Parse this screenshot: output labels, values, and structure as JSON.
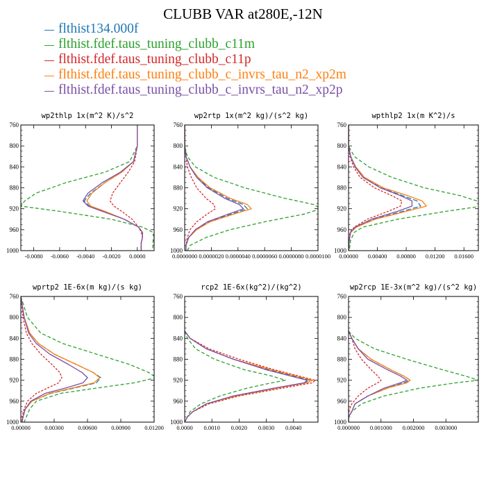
{
  "title": "CLUBB VAR at280E,-12N",
  "legend": [
    {
      "label": "flthist134.000f",
      "color": "#1f77b4"
    },
    {
      "label": "flthist.fdef.taus_tuning_clubb_c11m",
      "color": "#2ca02c"
    },
    {
      "label": "flthist.fdef.taus_tuning_clubb_c11p",
      "color": "#d62728"
    },
    {
      "label": "flthist.fdef.taus_tuning_clubb_c_invrs_tau_n2_xp2m",
      "color": "#ff7f0e"
    },
    {
      "label": "flthist.fdef.taus_tuning_clubb_c_invrs_tau_n2_xp2p",
      "color": "#7b4fa6"
    }
  ],
  "chart_data": [
    {
      "type": "line",
      "title": "wp2thlp  1x(m^2 K)/s^2",
      "xlim": [
        -0.009,
        0.0013
      ],
      "ylim": [
        760,
        1000
      ],
      "y_inverted": true,
      "xticks": [
        -0.008,
        -0.006,
        -0.004,
        -0.002,
        0.0
      ],
      "xtick_labels": [
        "-0.0080",
        "-0.0060",
        "-0.0040",
        "-0.0020",
        "0.0000"
      ],
      "yticks": [
        760,
        800,
        840,
        880,
        920,
        960,
        1000
      ],
      "ytick_labels": [
        "760",
        "800",
        "840",
        "880",
        "920",
        "960",
        "1000"
      ],
      "y": [
        760,
        800,
        830,
        850,
        870,
        890,
        905,
        915,
        925,
        940,
        955,
        965,
        975,
        985,
        1000
      ],
      "series": [
        {
          "name": "flthist134.000f",
          "color": "#1f77b4",
          "dash": "7 3",
          "values": [
            0.0,
            0.0,
            -0.0003,
            -0.0012,
            -0.0025,
            -0.0036,
            -0.0041,
            -0.0037,
            -0.0026,
            -0.001,
            0.0001,
            0.0004,
            0.0004,
            0.0003,
            0.0003
          ]
        },
        {
          "name": "flthist.fdef.taus_tuning_clubb_c11m",
          "color": "#2ca02c",
          "dash": "5 3",
          "values": [
            0.0,
            0.0,
            -0.0006,
            -0.0025,
            -0.0055,
            -0.0078,
            -0.0087,
            -0.009,
            -0.006,
            -0.002,
            0.0004,
            0.0012,
            0.0013,
            0.0012,
            0.0012
          ]
        },
        {
          "name": "flthist.fdef.taus_tuning_clubb_c11p",
          "color": "#d62728",
          "dash": "3 2",
          "values": [
            0.0,
            0.0,
            -0.0002,
            -0.0007,
            -0.0013,
            -0.0019,
            -0.0021,
            -0.0018,
            -0.0012,
            -0.0004,
            0.0001,
            0.0003,
            0.0004,
            0.0003,
            0.0003
          ]
        },
        {
          "name": "flthist.fdef.taus_tuning_clubb_c_invrs_tau_n2_xp2m",
          "color": "#ff7f0e",
          "dash": "",
          "values": [
            0.0,
            0.0,
            -0.0003,
            -0.0012,
            -0.0025,
            -0.0035,
            -0.0039,
            -0.0036,
            -0.0025,
            -0.001,
            0.0001,
            0.0004,
            0.0004,
            0.0003,
            0.0003
          ]
        },
        {
          "name": "flthist.fdef.taus_tuning_clubb_c_invrs_tau_n2_xp2p",
          "color": "#7b4fa6",
          "dash": "",
          "values": [
            0.0,
            0.0,
            -0.0003,
            -0.0013,
            -0.0027,
            -0.0038,
            -0.0042,
            -0.0038,
            -0.0027,
            -0.001,
            0.0001,
            0.0004,
            0.0004,
            0.0003,
            0.0003
          ]
        }
      ]
    },
    {
      "type": "line",
      "title": "wp2rtp  1x(m^2 kg)/(s^2 kg)",
      "xlim": [
        0,
        1e-05
      ],
      "ylim": [
        760,
        1000
      ],
      "y_inverted": true,
      "xticks": [
        0,
        2e-06,
        4e-06,
        6e-06,
        8e-06,
        1e-05
      ],
      "xtick_labels": [
        "0.0000000",
        "0.0000020",
        "0.0000040",
        "0.0000060",
        "0.0000080",
        "0.0000100"
      ],
      "yticks": [
        760,
        800,
        840,
        880,
        920,
        960,
        1000
      ],
      "ytick_labels": [
        "760",
        "800",
        "840",
        "880",
        "920",
        "960",
        "1000"
      ],
      "y": [
        760,
        800,
        820,
        840,
        860,
        880,
        900,
        912,
        920,
        930,
        945,
        960,
        975,
        990,
        1000
      ],
      "series": [
        {
          "name": "flthist134.000f",
          "color": "#1f77b4",
          "dash": "7 3",
          "values": [
            0.0,
            0.0,
            1e-07,
            4e-07,
            9e-07,
            1.8e-06,
            3.2e-06,
            4.4e-06,
            4.7e-06,
            3.5e-06,
            1.8e-06,
            8e-07,
            3e-07,
            1e-07,
            1e-07
          ]
        },
        {
          "name": "flthist.fdef.taus_tuning_clubb_c11m",
          "color": "#2ca02c",
          "dash": "5 3",
          "values": [
            0.0,
            0.0,
            2e-07,
            8e-07,
            2.2e-06,
            4.5e-06,
            7.5e-06,
            9.7e-06,
            1.02e-05,
            9e-06,
            6e-06,
            3.4e-06,
            1.6e-06,
            4e-07,
            2e-07
          ]
        },
        {
          "name": "flthist.fdef.taus_tuning_clubb_c11p",
          "color": "#d62728",
          "dash": "3 2",
          "values": [
            0.0,
            0.0,
            1e-07,
            2e-07,
            5e-07,
            9e-07,
            1.6e-06,
            2.2e-06,
            2.3e-06,
            1.7e-06,
            9e-07,
            4e-07,
            2e-07,
            1e-07,
            1e-07
          ]
        },
        {
          "name": "flthist.fdef.taus_tuning_clubb_c_invrs_tau_n2_xp2m",
          "color": "#ff7f0e",
          "dash": "",
          "values": [
            0.0,
            0.0,
            1e-07,
            4e-07,
            1e-06,
            1.9e-06,
            3.4e-06,
            4.7e-06,
            5e-06,
            3.7e-06,
            1.9e-06,
            9e-07,
            3e-07,
            1e-07,
            1e-07
          ]
        },
        {
          "name": "flthist.fdef.taus_tuning_clubb_c_invrs_tau_n2_xp2p",
          "color": "#7b4fa6",
          "dash": "",
          "values": [
            0.0,
            0.0,
            1e-07,
            4e-07,
            9e-07,
            1.7e-06,
            3e-06,
            4.1e-06,
            4.4e-06,
            3.3e-06,
            1.7e-06,
            8e-07,
            3e-07,
            1e-07,
            1e-07
          ]
        }
      ]
    },
    {
      "type": "line",
      "title": "wpthlp2  1x(m K^2)/s",
      "xlim": [
        0,
        0.018
      ],
      "ylim": [
        760,
        1000
      ],
      "y_inverted": true,
      "xticks": [
        0,
        0.004,
        0.008,
        0.012,
        0.016
      ],
      "xtick_labels": [
        "0.00000",
        "0.00400",
        "0.00800",
        "0.01200",
        "0.01600"
      ],
      "yticks": [
        760,
        800,
        840,
        880,
        920,
        960,
        1000
      ],
      "ytick_labels": [
        "760",
        "800",
        "840",
        "880",
        "920",
        "960",
        "1000"
      ],
      "y": [
        760,
        800,
        820,
        840,
        860,
        880,
        895,
        905,
        915,
        925,
        940,
        955,
        965,
        980,
        1000
      ],
      "series": [
        {
          "name": "flthist134.000f",
          "color": "#1f77b4",
          "dash": "7 3",
          "values": [
            0.0,
            0.0,
            0.0003,
            0.0009,
            0.002,
            0.0045,
            0.0075,
            0.0095,
            0.01,
            0.0075,
            0.0035,
            0.001,
            0.0003,
            0.0001,
            0.0
          ]
        },
        {
          "name": "flthist.fdef.taus_tuning_clubb_c11m",
          "color": "#2ca02c",
          "dash": "5 3",
          "values": [
            0.0,
            0.0,
            0.0008,
            0.0028,
            0.006,
            0.0105,
            0.0155,
            0.0178,
            0.0185,
            0.0135,
            0.0068,
            0.002,
            0.0008,
            0.0003,
            0.0001
          ]
        },
        {
          "name": "flthist.fdef.taus_tuning_clubb_c11p",
          "color": "#d62728",
          "dash": "3 2",
          "values": [
            0.0,
            0.0,
            0.0002,
            0.0007,
            0.0016,
            0.0036,
            0.006,
            0.0074,
            0.0072,
            0.0055,
            0.0026,
            0.0008,
            0.0002,
            0.0001,
            0.0
          ]
        },
        {
          "name": "flthist.fdef.taus_tuning_clubb_c_invrs_tau_n2_xp2m",
          "color": "#ff7f0e",
          "dash": "",
          "values": [
            0.0,
            0.0,
            0.0003,
            0.001,
            0.0022,
            0.0048,
            0.0082,
            0.0102,
            0.0108,
            0.008,
            0.0037,
            0.0011,
            0.0003,
            0.0001,
            0.0
          ]
        },
        {
          "name": "flthist.fdef.taus_tuning_clubb_c_invrs_tau_n2_xp2p",
          "color": "#7b4fa6",
          "dash": "",
          "values": [
            0.0,
            0.0,
            0.0003,
            0.0009,
            0.002,
            0.0044,
            0.0072,
            0.0088,
            0.0088,
            0.0068,
            0.0032,
            0.0009,
            0.0003,
            0.0001,
            0.0
          ]
        }
      ]
    },
    {
      "type": "line",
      "title": "wprtp2  1E-6x(m kg)/(s kg)",
      "xlim": [
        0,
        0.012
      ],
      "ylim": [
        760,
        1000
      ],
      "y_inverted": true,
      "xticks": [
        0,
        0.003,
        0.006,
        0.009,
        0.012
      ],
      "xtick_labels": [
        "0.00000",
        "0.00300",
        "0.00600",
        "0.00900",
        "0.01200"
      ],
      "yticks": [
        760,
        800,
        840,
        880,
        920,
        960,
        1000
      ],
      "ytick_labels": [
        "760",
        "800",
        "840",
        "880",
        "920",
        "960",
        "1000"
      ],
      "y": [
        760,
        800,
        830,
        850,
        870,
        890,
        905,
        915,
        925,
        935,
        945,
        960,
        975,
        990,
        1000
      ],
      "series": [
        {
          "name": "flthist134.000f",
          "color": "#1f77b4",
          "dash": "7 3",
          "values": [
            0.0,
            0.0003,
            0.0008,
            0.0016,
            0.003,
            0.005,
            0.0065,
            0.0072,
            0.0068,
            0.0048,
            0.0027,
            0.001,
            0.0004,
            0.0002,
            0.0001
          ]
        },
        {
          "name": "flthist.fdef.taus_tuning_clubb_c11m",
          "color": "#2ca02c",
          "dash": "5 3",
          "values": [
            0.0,
            0.0006,
            0.0018,
            0.0038,
            0.0068,
            0.0098,
            0.0115,
            0.0122,
            0.0102,
            0.0068,
            0.0036,
            0.0014,
            0.0008,
            0.0005,
            0.0003
          ]
        },
        {
          "name": "flthist.fdef.taus_tuning_clubb_c11p",
          "color": "#d62728",
          "dash": "3 2",
          "values": [
            0.0,
            0.0002,
            0.0005,
            0.001,
            0.0018,
            0.0028,
            0.0035,
            0.0037,
            0.0034,
            0.0024,
            0.0014,
            0.0006,
            0.0003,
            0.0001,
            0.0001
          ]
        },
        {
          "name": "flthist.fdef.taus_tuning_clubb_c_invrs_tau_n2_xp2m",
          "color": "#ff7f0e",
          "dash": "",
          "values": [
            0.0,
            0.0003,
            0.0008,
            0.0016,
            0.003,
            0.005,
            0.0065,
            0.0071,
            0.0066,
            0.0046,
            0.0026,
            0.001,
            0.0004,
            0.0002,
            0.0001
          ]
        },
        {
          "name": "flthist.fdef.taus_tuning_clubb_c_invrs_tau_n2_xp2p",
          "color": "#7b4fa6",
          "dash": "",
          "values": [
            0.0,
            0.0003,
            0.0007,
            0.0014,
            0.0026,
            0.0043,
            0.0055,
            0.006,
            0.0056,
            0.004,
            0.0022,
            0.0009,
            0.0004,
            0.0002,
            0.0001
          ]
        }
      ]
    },
    {
      "type": "line",
      "title": "rcp2  1E-6x(kg^2)/(kg^2)",
      "xlim": [
        0,
        0.0049
      ],
      "ylim": [
        760,
        1000
      ],
      "y_inverted": true,
      "xticks": [
        0,
        0.001,
        0.002,
        0.003,
        0.004
      ],
      "xtick_labels": [
        "0.0000",
        "0.0010",
        "0.0020",
        "0.0030",
        "0.0040"
      ],
      "yticks": [
        760,
        800,
        840,
        880,
        920,
        960,
        1000
      ],
      "ytick_labels": [
        "760",
        "800",
        "840",
        "880",
        "920",
        "960",
        "1000"
      ],
      "y": [
        826,
        840,
        860,
        880,
        900,
        912,
        920,
        925,
        935,
        950,
        965,
        980,
        990,
        1000
      ],
      "series": [
        {
          "name": "flthist134.000f",
          "color": "#1f77b4",
          "dash": "7 3",
          "values": [
            0.0,
            0.0002,
            0.0008,
            0.0018,
            0.0031,
            0.004,
            0.0046,
            0.0044,
            0.0033,
            0.0018,
            0.0008,
            0.0003,
            0.0001,
            0.0
          ]
        },
        {
          "name": "flthist.fdef.taus_tuning_clubb_c11m",
          "color": "#2ca02c",
          "dash": "5 3",
          "values": [
            0.0,
            0.0001,
            0.0004,
            0.0011,
            0.0022,
            0.0032,
            0.0037,
            0.0032,
            0.0023,
            0.0013,
            0.0006,
            0.0002,
            0.0001,
            0.0
          ]
        },
        {
          "name": "flthist.fdef.taus_tuning_clubb_c11p",
          "color": "#d62728",
          "dash": "3 2",
          "values": [
            0.0,
            0.0002,
            0.0009,
            0.002,
            0.0033,
            0.0042,
            0.0048,
            0.0047,
            0.0036,
            0.002,
            0.0009,
            0.0003,
            0.0001,
            0.0
          ]
        },
        {
          "name": "flthist.fdef.taus_tuning_clubb_c_invrs_tau_n2_xp2m",
          "color": "#ff7f0e",
          "dash": "",
          "values": [
            0.0,
            0.0002,
            0.0008,
            0.0018,
            0.0032,
            0.0041,
            0.0047,
            0.0045,
            0.0034,
            0.0019,
            0.0008,
            0.0003,
            0.0001,
            0.0
          ]
        },
        {
          "name": "flthist.fdef.taus_tuning_clubb_c_invrs_tau_n2_xp2p",
          "color": "#7b4fa6",
          "dash": "",
          "values": [
            0.0,
            0.0002,
            0.0008,
            0.0018,
            0.003,
            0.0039,
            0.0045,
            0.0044,
            0.0033,
            0.0018,
            0.0008,
            0.0003,
            0.0001,
            0.0
          ]
        }
      ]
    },
    {
      "type": "line",
      "title": "wp2rcp  1E-3x(m^2 kg)/(s^2 kg)",
      "xlim": [
        0,
        0.004
      ],
      "ylim": [
        760,
        1000
      ],
      "y_inverted": true,
      "xticks": [
        0,
        0.001,
        0.002,
        0.003
      ],
      "xtick_labels": [
        "0.000000",
        "0.001000",
        "0.002000",
        "0.003000"
      ],
      "yticks": [
        760,
        800,
        840,
        880,
        920,
        960,
        1000
      ],
      "ytick_labels": [
        "760",
        "800",
        "840",
        "880",
        "920",
        "960",
        "1000"
      ],
      "y": [
        826,
        840,
        860,
        880,
        900,
        912,
        920,
        925,
        935,
        950,
        965,
        980,
        990,
        1000
      ],
      "series": [
        {
          "name": "flthist134.000f",
          "color": "#1f77b4",
          "dash": "7 3",
          "values": [
            0.0,
            0.0001,
            0.0003,
            0.0007,
            0.0013,
            0.0017,
            0.0019,
            0.0017,
            0.0012,
            0.0006,
            0.0002,
            0.0001,
            0.0,
            0.0
          ]
        },
        {
          "name": "flthist.fdef.taus_tuning_clubb_c11m",
          "color": "#2ca02c",
          "dash": "5 3",
          "values": [
            0.0,
            0.0002,
            0.0008,
            0.0018,
            0.0029,
            0.0036,
            0.004,
            0.0033,
            0.0022,
            0.0011,
            0.0004,
            0.0001,
            0.0,
            0.0
          ]
        },
        {
          "name": "flthist.fdef.taus_tuning_clubb_c11p",
          "color": "#d62728",
          "dash": "3 2",
          "values": [
            0.0,
            0.0001,
            0.0002,
            0.0004,
            0.0007,
            0.0009,
            0.001,
            0.0009,
            0.0006,
            0.0003,
            0.0001,
            0.0,
            0.0,
            0.0
          ]
        },
        {
          "name": "flthist.fdef.taus_tuning_clubb_c_invrs_tau_n2_xp2m",
          "color": "#ff7f0e",
          "dash": "",
          "values": [
            0.0,
            0.0001,
            0.0003,
            0.0007,
            0.0013,
            0.0017,
            0.0019,
            0.0018,
            0.0012,
            0.0006,
            0.0002,
            0.0001,
            0.0,
            0.0
          ]
        },
        {
          "name": "flthist.fdef.taus_tuning_clubb_c_invrs_tau_n2_xp2p",
          "color": "#7b4fa6",
          "dash": "",
          "values": [
            0.0,
            0.0001,
            0.0003,
            0.0006,
            0.0012,
            0.0016,
            0.0018,
            0.0016,
            0.0011,
            0.0006,
            0.0002,
            0.0001,
            0.0,
            0.0
          ]
        }
      ]
    }
  ]
}
